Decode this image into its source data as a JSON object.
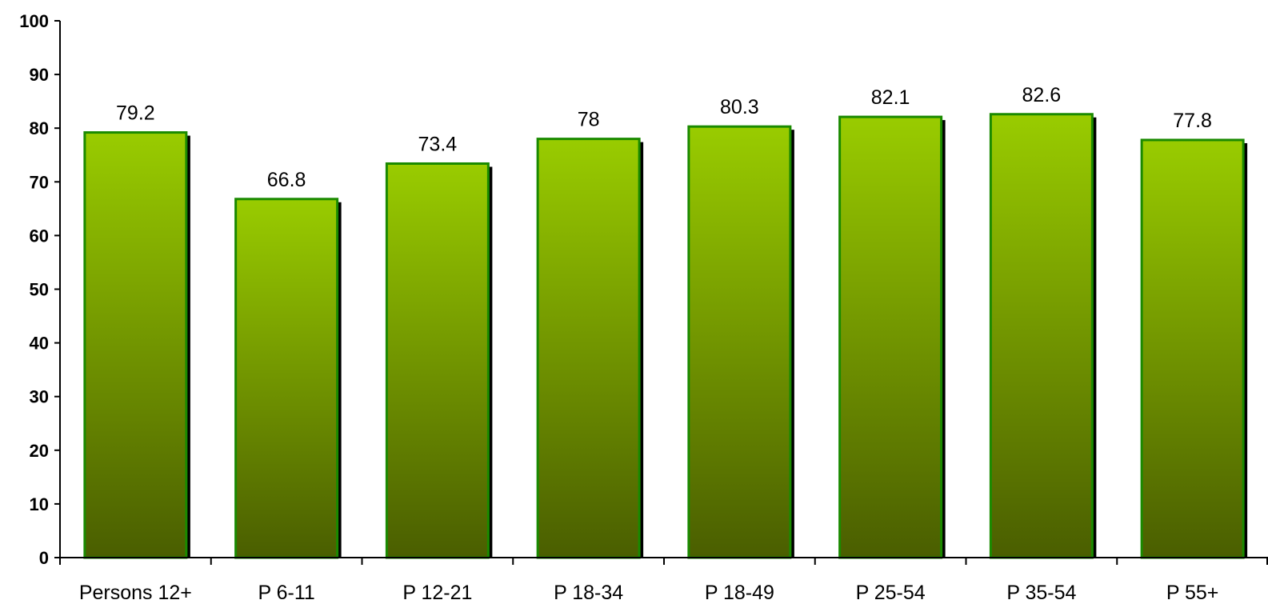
{
  "chart_data": {
    "type": "bar",
    "title": "",
    "xlabel": "",
    "ylabel": "",
    "ylim": [
      0,
      100
    ],
    "yticks": [
      0,
      10,
      20,
      30,
      40,
      50,
      60,
      70,
      80,
      90,
      100
    ],
    "categories": [
      "Persons 12+",
      "P 6-11",
      "P 12-21",
      "P 18-34",
      "P 18-49",
      "P 25-54",
      "P 35-54",
      "P 55+"
    ],
    "values": [
      79.2,
      66.8,
      73.4,
      78,
      80.3,
      82.1,
      82.6,
      77.8
    ],
    "data_labels": [
      "79.2",
      "66.8",
      "73.4",
      "78",
      "80.3",
      "82.1",
      "82.6",
      "77.8"
    ],
    "grid": false,
    "legend": "none",
    "colors": {
      "bar_top": "#99cc00",
      "bar_bottom": "#4a5e00",
      "bar_border": "#1a8a00",
      "bar_shadow": "#000000",
      "axis": "#000000"
    }
  }
}
